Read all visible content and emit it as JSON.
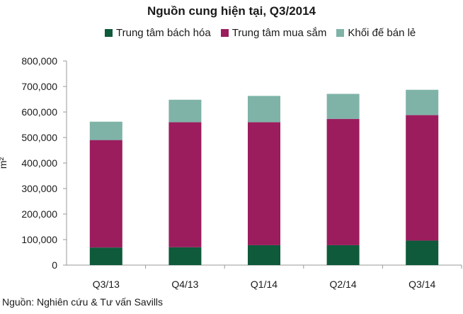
{
  "chart_data": {
    "type": "bar",
    "stacked": true,
    "title": "Nguồn cung hiện tại, Q3/2014",
    "ylabel": "m²",
    "xlabel": "",
    "categories": [
      "Q3/13",
      "Q4/13",
      "Q1/14",
      "Q2/14",
      "Q3/14"
    ],
    "series": [
      {
        "name": "Trung tâm bách hóa",
        "color": "#0e5a3a",
        "values": [
          69000,
          70000,
          78000,
          78000,
          96000
        ]
      },
      {
        "name": "Trung tâm mua sắm",
        "color": "#9b1d5e",
        "values": [
          421000,
          490000,
          482000,
          495000,
          492000
        ]
      },
      {
        "name": "Khối đế bán lẻ",
        "color": "#7fb3a8",
        "values": [
          72000,
          88000,
          103000,
          98000,
          99000
        ]
      }
    ],
    "ylim": [
      0,
      800000
    ],
    "yticks": [
      "0",
      "100,000",
      "200,000",
      "300,000",
      "400,000",
      "500,000",
      "600,000",
      "700,000",
      "800,000"
    ],
    "grid": false,
    "legend": "top"
  },
  "source": "Nguồn: Nghiên cứu & Tư vấn Savills"
}
